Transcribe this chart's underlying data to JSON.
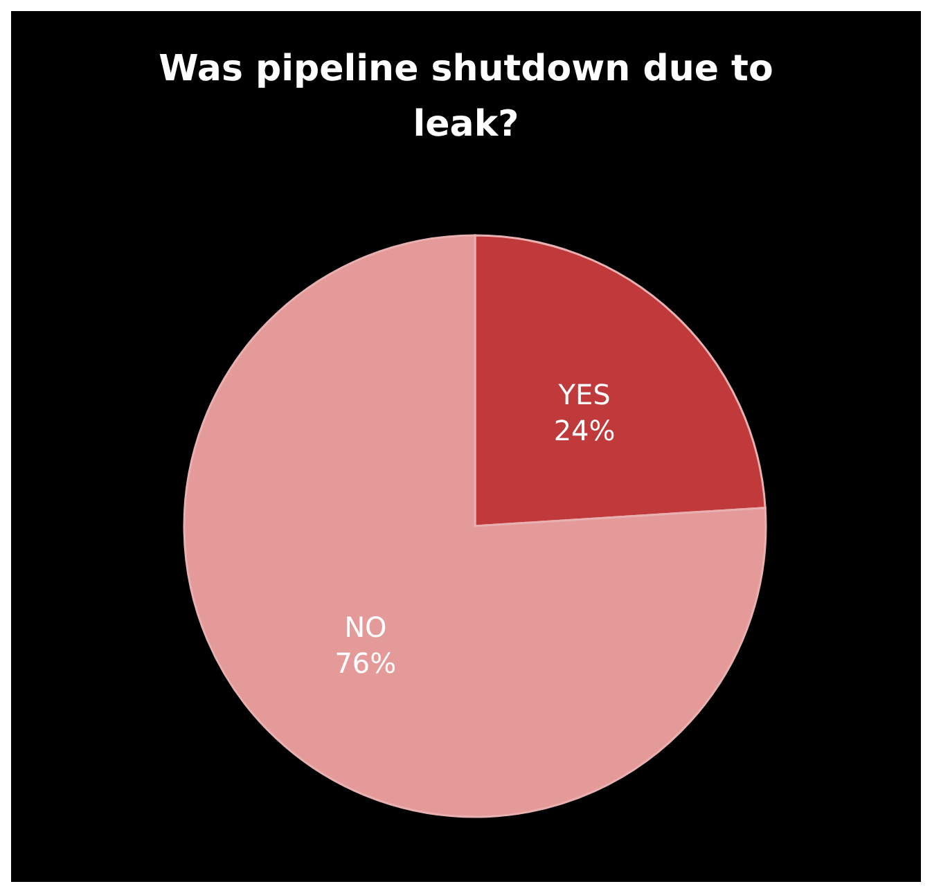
{
  "chart_data": {
    "type": "pie",
    "title": "Was pipeline shutdown due to leak?",
    "categories": [
      "YES",
      "NO"
    ],
    "values": [
      24,
      76
    ],
    "value_labels": [
      "24%",
      "76%"
    ],
    "colors": [
      "#c0393b",
      "#e59a9a"
    ]
  }
}
